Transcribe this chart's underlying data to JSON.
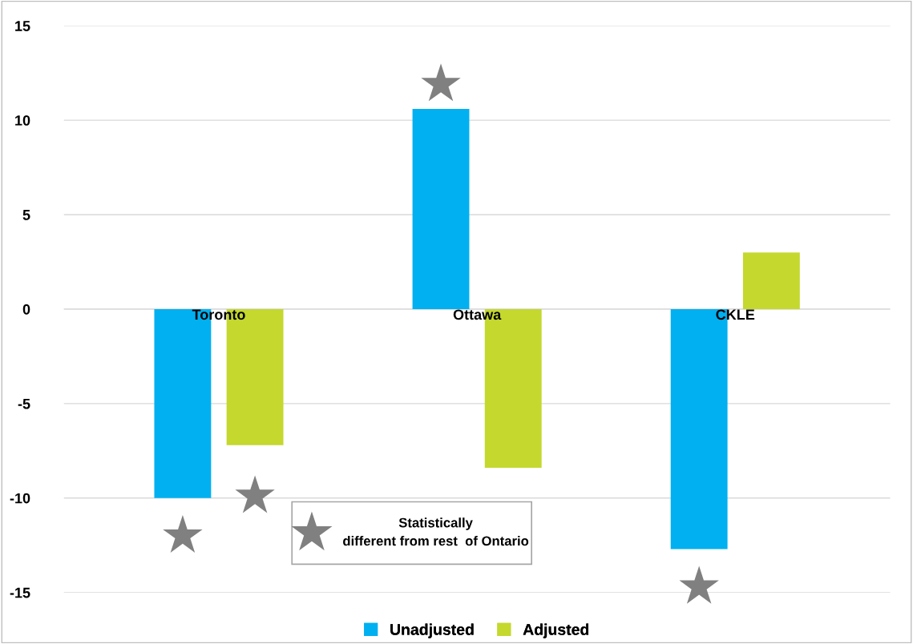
{
  "chart_data": {
    "type": "bar",
    "categories": [
      "Toronto",
      "Ottawa",
      "CKLE"
    ],
    "series": [
      {
        "name": "Unadjusted",
        "color": "#00b0f0",
        "values": [
          -10.0,
          10.6,
          -12.7
        ]
      },
      {
        "name": "Adjusted",
        "color": "#c4d82e",
        "values": [
          -7.2,
          -8.4,
          3.0
        ]
      },
      {
        "type": "scatter",
        "color": "#808080",
        "values": [
          -12.0,
          11.9,
          -14.7
        ]
      },
      {
        "type": "scatter",
        "color": "#808080",
        "values": [
          -9.9,
          null,
          null
        ]
      }
    ],
    "ylim": [
      -15,
      15
    ],
    "yticks": [
      {
        "value": -15,
        "label": "-15"
      },
      {
        "value": -10,
        "label": "-10"
      },
      {
        "value": -5,
        "label": "-5"
      },
      0,
      5,
      10,
      15
    ],
    "annotations": [
      "Statistically\ndifferent from rest  of Ontario"
    ],
    "grid": "y",
    "legend": "bottom",
    "marker": "star"
  }
}
